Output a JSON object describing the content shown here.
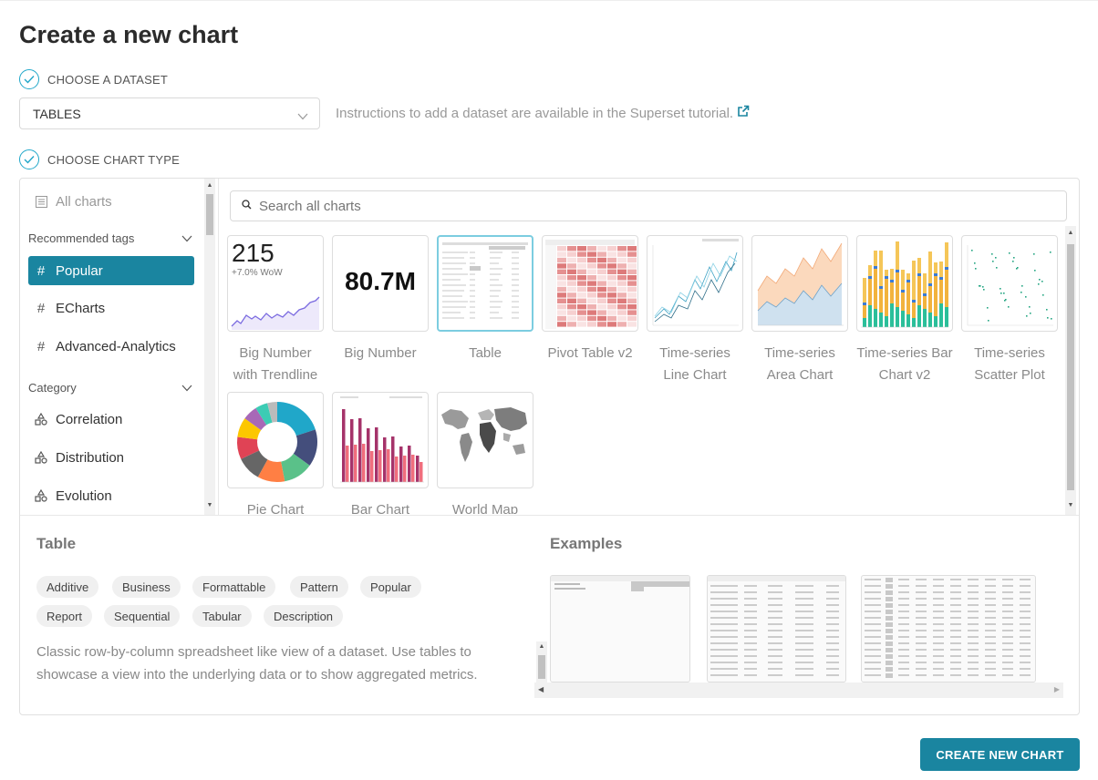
{
  "page_title": "Create a new chart",
  "steps": {
    "dataset": "CHOOSE A DATASET",
    "chart_type": "CHOOSE CHART TYPE"
  },
  "dataset_select": {
    "value": "TABLES"
  },
  "dataset_hint": "Instructions to add a dataset are available in the Superset tutorial.",
  "sidebar": {
    "all_charts": "All charts",
    "recommended_tags_label": "Recommended tags",
    "tags": [
      "Popular",
      "ECharts",
      "Advanced-Analytics"
    ],
    "category_label": "Category",
    "categories": [
      "Correlation",
      "Distribution",
      "Evolution"
    ]
  },
  "search": {
    "placeholder": "Search all charts"
  },
  "cards": [
    {
      "label": "Big Number with Trendline",
      "number": "215",
      "sub": "+7.0% WoW"
    },
    {
      "label": "Big Number",
      "number": "80.7M"
    },
    {
      "label": "Table"
    },
    {
      "label": "Pivot Table v2"
    },
    {
      "label": "Time-series Line Chart"
    },
    {
      "label": "Time-series Area Chart"
    },
    {
      "label": "Time-series Bar Chart v2"
    },
    {
      "label": "Time-series Scatter Plot"
    },
    {
      "label": "Pie Chart"
    },
    {
      "label": "Bar Chart"
    },
    {
      "label": "World Map"
    }
  ],
  "selected_chart": {
    "name": "Table",
    "tags": [
      "Additive",
      "Business",
      "Formattable",
      "Pattern",
      "Popular",
      "Report",
      "Sequential",
      "Tabular",
      "Description"
    ],
    "description": "Classic row-by-column spreadsheet like view of a dataset. Use tables to showcase a view into the underlying data or to show aggregated metrics."
  },
  "examples_label": "Examples",
  "create_button": "CREATE NEW CHART",
  "colors": {
    "accent": "#1a85a0",
    "check": "#20a7c9",
    "selected_border": "#7ccde0"
  }
}
